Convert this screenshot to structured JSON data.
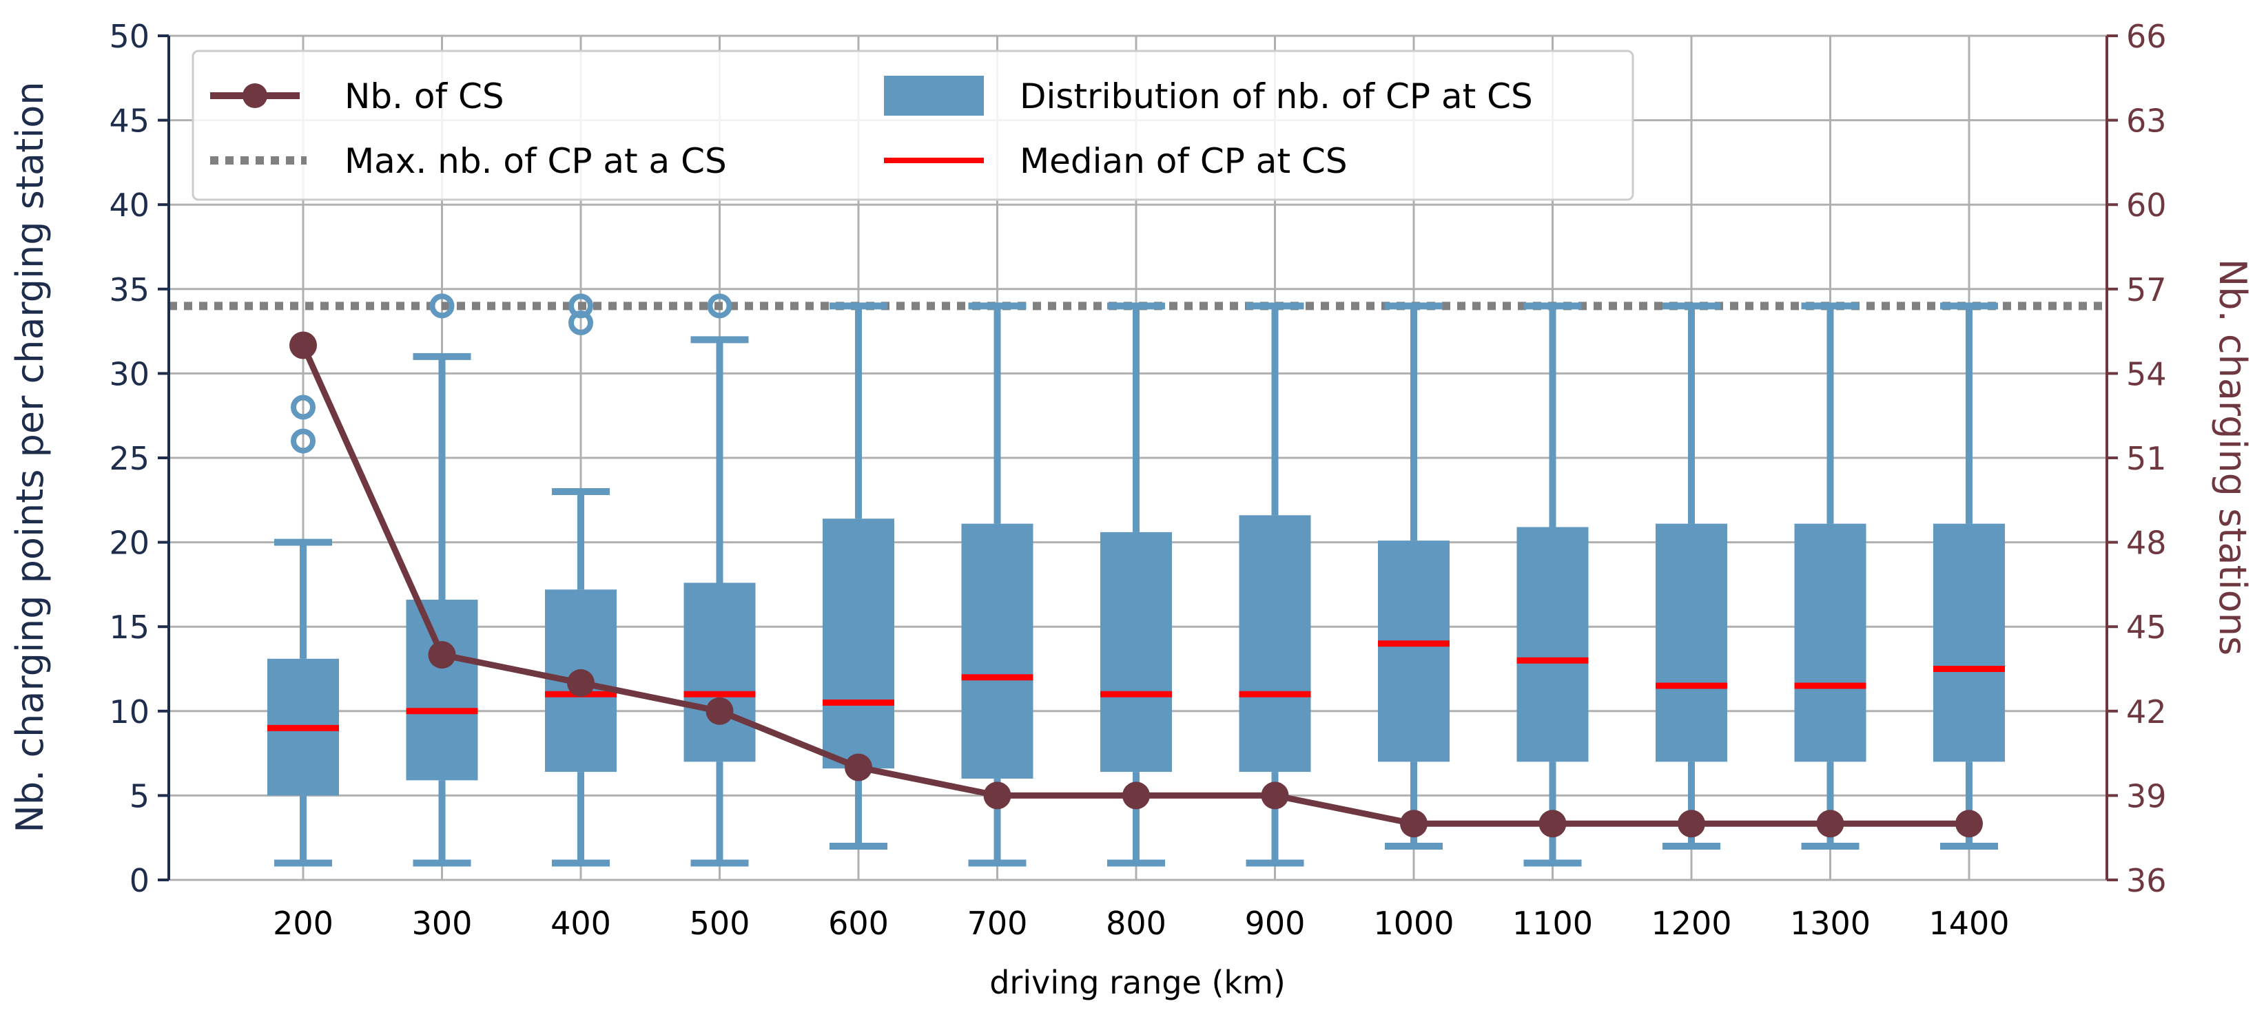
{
  "chart_data": {
    "type": "box+line",
    "categories": [
      "200",
      "300",
      "400",
      "500",
      "600",
      "700",
      "800",
      "900",
      "1000",
      "1100",
      "1200",
      "1300",
      "1400"
    ],
    "xlabel": "driving range (km)",
    "ylabel_left": "Nb. charging points per charging station",
    "ylabel_right": "Nb. charging stations",
    "ylim_left": [
      0,
      50
    ],
    "ylim_right": [
      36,
      66
    ],
    "yticks_left": [
      "0",
      "5",
      "10",
      "15",
      "20",
      "25",
      "30",
      "35",
      "40",
      "45",
      "50"
    ],
    "yticks_right": [
      "36",
      "39",
      "42",
      "45",
      "48",
      "51",
      "54",
      "57",
      "60",
      "63",
      "66"
    ],
    "grid": true,
    "max_cp_line": 34,
    "boxes": [
      {
        "category": "200",
        "whisker_low": 1,
        "q1": 5,
        "median": 9,
        "q3": 13.1,
        "whisker_high": 20,
        "outliers": [
          26,
          28
        ]
      },
      {
        "category": "300",
        "whisker_low": 1,
        "q1": 5.9,
        "median": 10,
        "q3": 16.6,
        "whisker_high": 31,
        "outliers": [
          34
        ]
      },
      {
        "category": "400",
        "whisker_low": 1,
        "q1": 6.4,
        "median": 11,
        "q3": 17.2,
        "whisker_high": 23,
        "outliers": [
          33,
          34
        ]
      },
      {
        "category": "500",
        "whisker_low": 1,
        "q1": 7,
        "median": 11,
        "q3": 17.6,
        "whisker_high": 32,
        "outliers": [
          34
        ]
      },
      {
        "category": "600",
        "whisker_low": 2,
        "q1": 6.6,
        "median": 10.5,
        "q3": 21.4,
        "whisker_high": 34,
        "outliers": []
      },
      {
        "category": "700",
        "whisker_low": 1,
        "q1": 6,
        "median": 12,
        "q3": 21.1,
        "whisker_high": 34,
        "outliers": []
      },
      {
        "category": "800",
        "whisker_low": 1,
        "q1": 6.4,
        "median": 11,
        "q3": 20.6,
        "whisker_high": 34,
        "outliers": []
      },
      {
        "category": "900",
        "whisker_low": 1,
        "q1": 6.4,
        "median": 11,
        "q3": 21.6,
        "whisker_high": 34,
        "outliers": []
      },
      {
        "category": "1000",
        "whisker_low": 2,
        "q1": 7,
        "median": 14,
        "q3": 20.1,
        "whisker_high": 34,
        "outliers": []
      },
      {
        "category": "1100",
        "whisker_low": 1,
        "q1": 7,
        "median": 13,
        "q3": 20.9,
        "whisker_high": 34,
        "outliers": []
      },
      {
        "category": "1200",
        "whisker_low": 2,
        "q1": 7,
        "median": 11.5,
        "q3": 21.1,
        "whisker_high": 34,
        "outliers": []
      },
      {
        "category": "1300",
        "whisker_low": 2,
        "q1": 7,
        "median": 11.5,
        "q3": 21.1,
        "whisker_high": 34,
        "outliers": []
      },
      {
        "category": "1400",
        "whisker_low": 2,
        "q1": 7,
        "median": 12.5,
        "q3": 21.1,
        "whisker_high": 34,
        "outliers": []
      }
    ],
    "line_series": {
      "name": "Nb. of CS",
      "axis": "right",
      "values": [
        55,
        44,
        43,
        42,
        40,
        39,
        39,
        39,
        38,
        38,
        38,
        38,
        38
      ]
    },
    "legend": {
      "placement": "top-left",
      "items": [
        {
          "label": "Nb. of CS",
          "kind": "line-marker"
        },
        {
          "label": "Max. nb. of CP at a CS",
          "kind": "dotted"
        },
        {
          "label": "Distribution of nb. of CP at CS",
          "kind": "box"
        },
        {
          "label": "Median of CP at CS",
          "kind": "median"
        }
      ]
    },
    "colors": {
      "box": "#6098bf",
      "median": "#ff0000",
      "line": "#6f3840",
      "max_line": "#808080",
      "grid": "#b0b0b0",
      "left_axis": "#1f2d4d",
      "right_axis": "#6f3840"
    }
  }
}
